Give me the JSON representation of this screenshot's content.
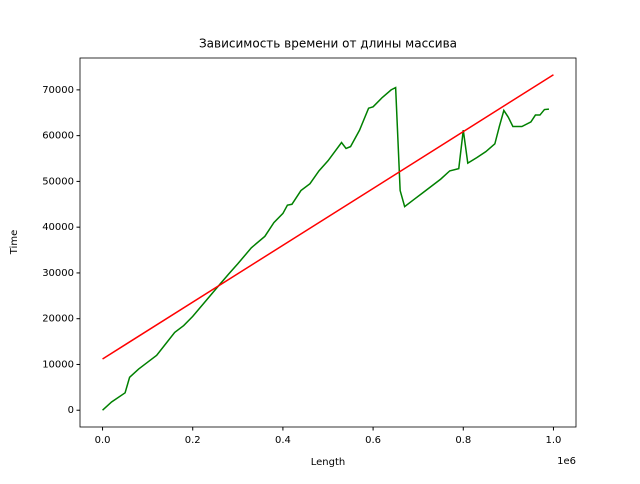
{
  "chart_data": {
    "type": "line",
    "title": "Зависимость времени от длины массива",
    "x_label": "Length",
    "y_label": "Time",
    "x_offset_label": "1e6",
    "xlim": [
      -50000,
      1050000
    ],
    "ylim": [
      -3665,
      76965
    ],
    "xticks": [
      {
        "value": 0,
        "label": "0.0"
      },
      {
        "value": 200000,
        "label": "0.2"
      },
      {
        "value": 400000,
        "label": "0.4"
      },
      {
        "value": 600000,
        "label": "0.6"
      },
      {
        "value": 800000,
        "label": "0.8"
      },
      {
        "value": 1000000,
        "label": "1.0"
      }
    ],
    "yticks": [
      0,
      10000,
      20000,
      30000,
      40000,
      50000,
      60000,
      70000
    ],
    "series": [
      {
        "color": "#008000",
        "x": [
          0,
          20000,
          50000,
          60000,
          80000,
          100000,
          120000,
          140000,
          160000,
          180000,
          200000,
          230000,
          260000,
          280000,
          300000,
          330000,
          360000,
          380000,
          400000,
          410000,
          420000,
          440000,
          460000,
          480000,
          500000,
          530000,
          540000,
          550000,
          570000,
          590000,
          600000,
          620000,
          640000,
          650000,
          660000,
          670000,
          690000,
          710000,
          730000,
          750000,
          770000,
          790000,
          800000,
          810000,
          830000,
          850000,
          870000,
          880000,
          890000,
          900000,
          910000,
          930000,
          950000,
          960000,
          970000,
          980000,
          990000
        ],
        "values": [
          0,
          1800,
          3800,
          7200,
          9000,
          10500,
          12000,
          14500,
          17000,
          18500,
          20500,
          24000,
          27500,
          29800,
          32000,
          35500,
          38000,
          41000,
          43000,
          44800,
          45000,
          48000,
          49500,
          52300,
          54500,
          58500,
          57200,
          57600,
          61200,
          66000,
          66300,
          68300,
          70000,
          70500,
          48000,
          44500,
          46000,
          47500,
          49000,
          50500,
          52300,
          52800,
          61200,
          54000,
          55200,
          56500,
          58200,
          62000,
          65500,
          64000,
          62000,
          62000,
          63000,
          64500,
          64500,
          65700,
          65800
        ]
      },
      {
        "color": "#ff0000",
        "x": [
          0,
          1000000
        ],
        "values": [
          11200,
          73300
        ]
      }
    ]
  }
}
